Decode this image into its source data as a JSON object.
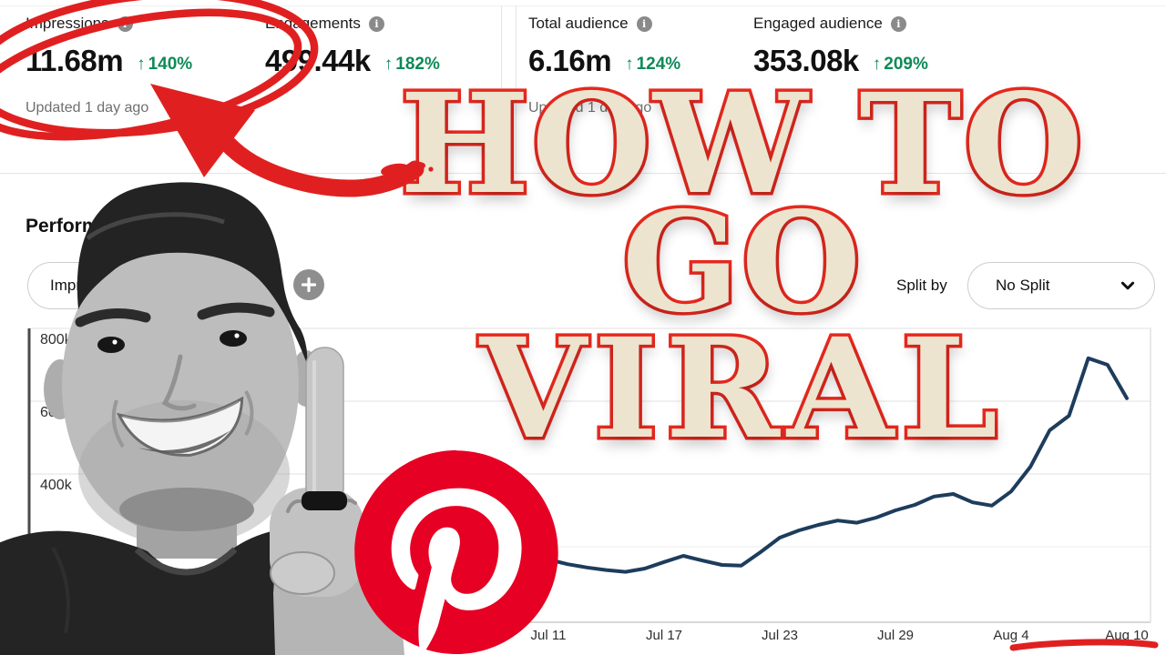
{
  "metrics_cards": [
    {
      "label": "Impressions",
      "value": "11.68m",
      "change": "140%"
    },
    {
      "label": "Engagements",
      "value": "499.44k",
      "change": "182%"
    },
    {
      "label": "Total audience",
      "value": "6.16m",
      "change": "124%"
    },
    {
      "label": "Engaged audience",
      "value": "353.08k",
      "change": "209%"
    }
  ],
  "updated_text": "Updated 1 day ago",
  "performance_section": {
    "heading": "Performance over time",
    "metric_filter": "Impressions",
    "split_by_label": "Split by",
    "split_value": "No Split"
  },
  "overlay_title": {
    "line1": "HOW TO",
    "line2": "GO",
    "line3": "VIRAL"
  },
  "icons": {
    "up_arrow": "↑",
    "info": "i"
  },
  "colors": {
    "positive_green": "#0e8a57",
    "annotation_red": "#e02020",
    "line_navy": "#1e3c5c",
    "pinterest_red": "#e60023",
    "title_fill": "#ece4cf",
    "title_stroke": "#e8291f"
  },
  "chart_data": {
    "type": "line",
    "title": "Performance over time",
    "legend": "none",
    "grid": "horizontal",
    "ylim": [
      0,
      800000
    ],
    "x": [
      "Jul 11",
      "Jul 12",
      "Jul 13",
      "Jul 14",
      "Jul 15",
      "Jul 16",
      "Jul 17",
      "Jul 18",
      "Jul 19",
      "Jul 20",
      "Jul 21",
      "Jul 22",
      "Jul 23",
      "Jul 24",
      "Jul 25",
      "Jul 26",
      "Jul 27",
      "Jul 28",
      "Jul 29",
      "Jul 30",
      "Jul 31",
      "Aug 1",
      "Aug 2",
      "Aug 3",
      "Aug 4",
      "Aug 5",
      "Aug 6",
      "Aug 7",
      "Aug 8",
      "Aug 9",
      "Aug 10"
    ],
    "series": [
      {
        "name": "Impressions",
        "values": [
          165000,
          152000,
          143000,
          136000,
          131000,
          140000,
          158000,
          175000,
          162000,
          150000,
          148000,
          185000,
          225000,
          245000,
          260000,
          272000,
          266000,
          280000,
          300000,
          315000,
          338000,
          345000,
          322000,
          313000,
          352000,
          420000,
          520000,
          560000,
          718000,
          700000,
          608000
        ]
      }
    ],
    "x_ticks": [
      "Jul 11",
      "Jul 17",
      "Jul 23",
      "Jul 29",
      "Aug 4",
      "Aug 10"
    ],
    "y_ticks": [
      {
        "label": "800k",
        "value": 800000
      },
      {
        "label": "600k",
        "value": 600000
      },
      {
        "label": "400k",
        "value": 400000
      }
    ]
  }
}
